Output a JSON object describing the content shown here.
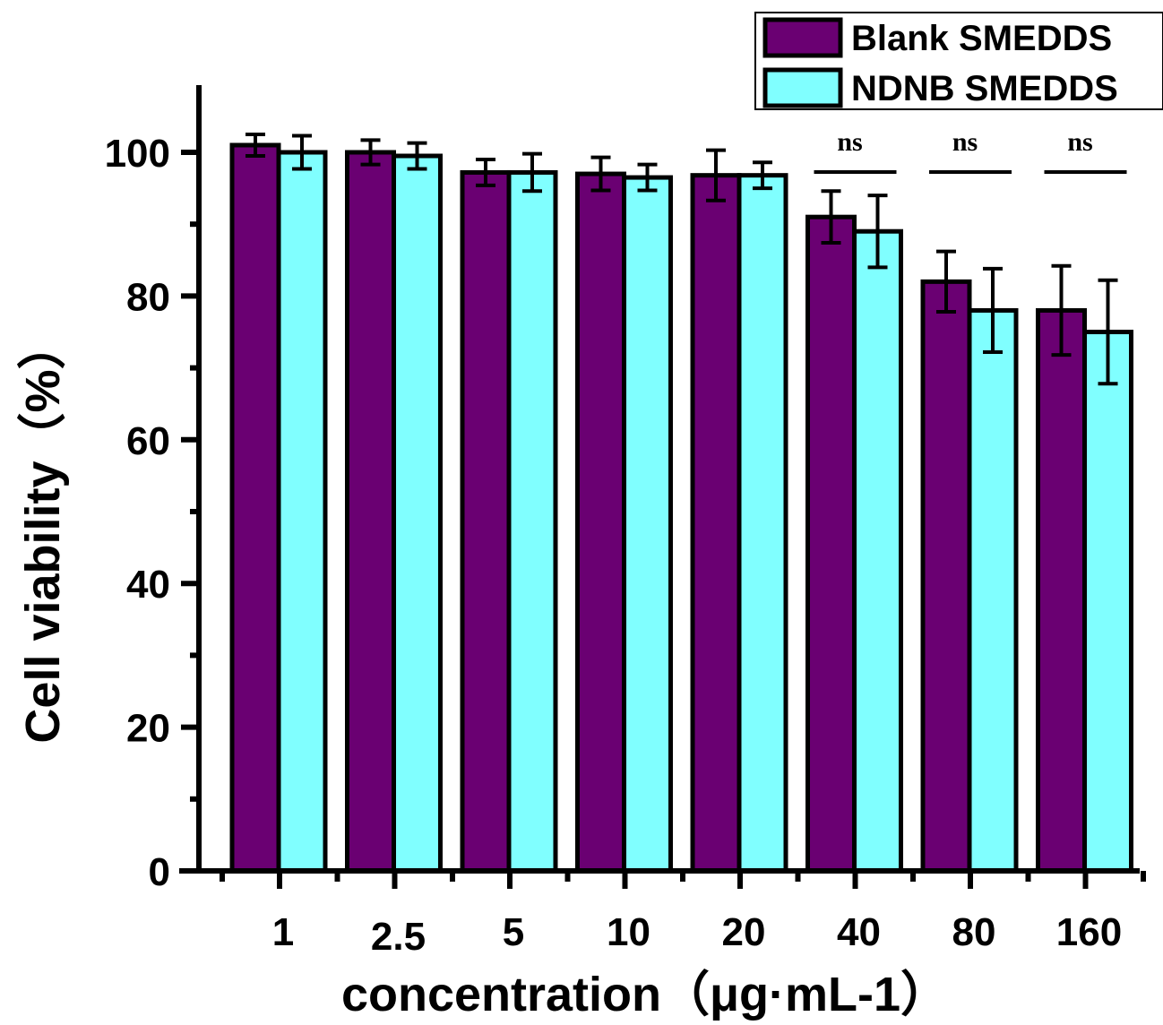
{
  "chart_data": {
    "type": "bar",
    "title": "",
    "xlabel": "concentration（μg·mL-1）",
    "ylabel": "Cell viability（%）",
    "categories": [
      "1",
      "2.5",
      "5",
      "10",
      "20",
      "40",
      "80",
      "160"
    ],
    "ylim": [
      0,
      110
    ],
    "yticks": [
      0,
      20,
      40,
      60,
      80,
      100
    ],
    "ytick_labels": [
      "0",
      "20",
      "40",
      "60",
      "80",
      "100"
    ],
    "grid": false,
    "legend_position": "top-right",
    "series": [
      {
        "name": "Blank SMEDDS",
        "color": "#6a0072",
        "values": [
          101.0,
          100.0,
          97.2,
          97.0,
          96.8,
          91.0,
          82.0,
          78.0
        ],
        "errors": [
          1.5,
          1.7,
          1.8,
          2.3,
          3.5,
          3.6,
          4.2,
          6.2
        ]
      },
      {
        "name": "NDNB SMEDDS",
        "color": "#80ffff",
        "values": [
          100.0,
          99.5,
          97.2,
          96.5,
          96.8,
          89.0,
          78.0,
          75.0
        ],
        "errors": [
          2.3,
          1.8,
          2.6,
          1.8,
          1.8,
          5.0,
          5.8,
          7.2
        ]
      }
    ],
    "annotations": [
      {
        "text": "ns",
        "category": "40"
      },
      {
        "text": "ns",
        "category": "80"
      },
      {
        "text": "ns",
        "category": "160"
      }
    ]
  }
}
